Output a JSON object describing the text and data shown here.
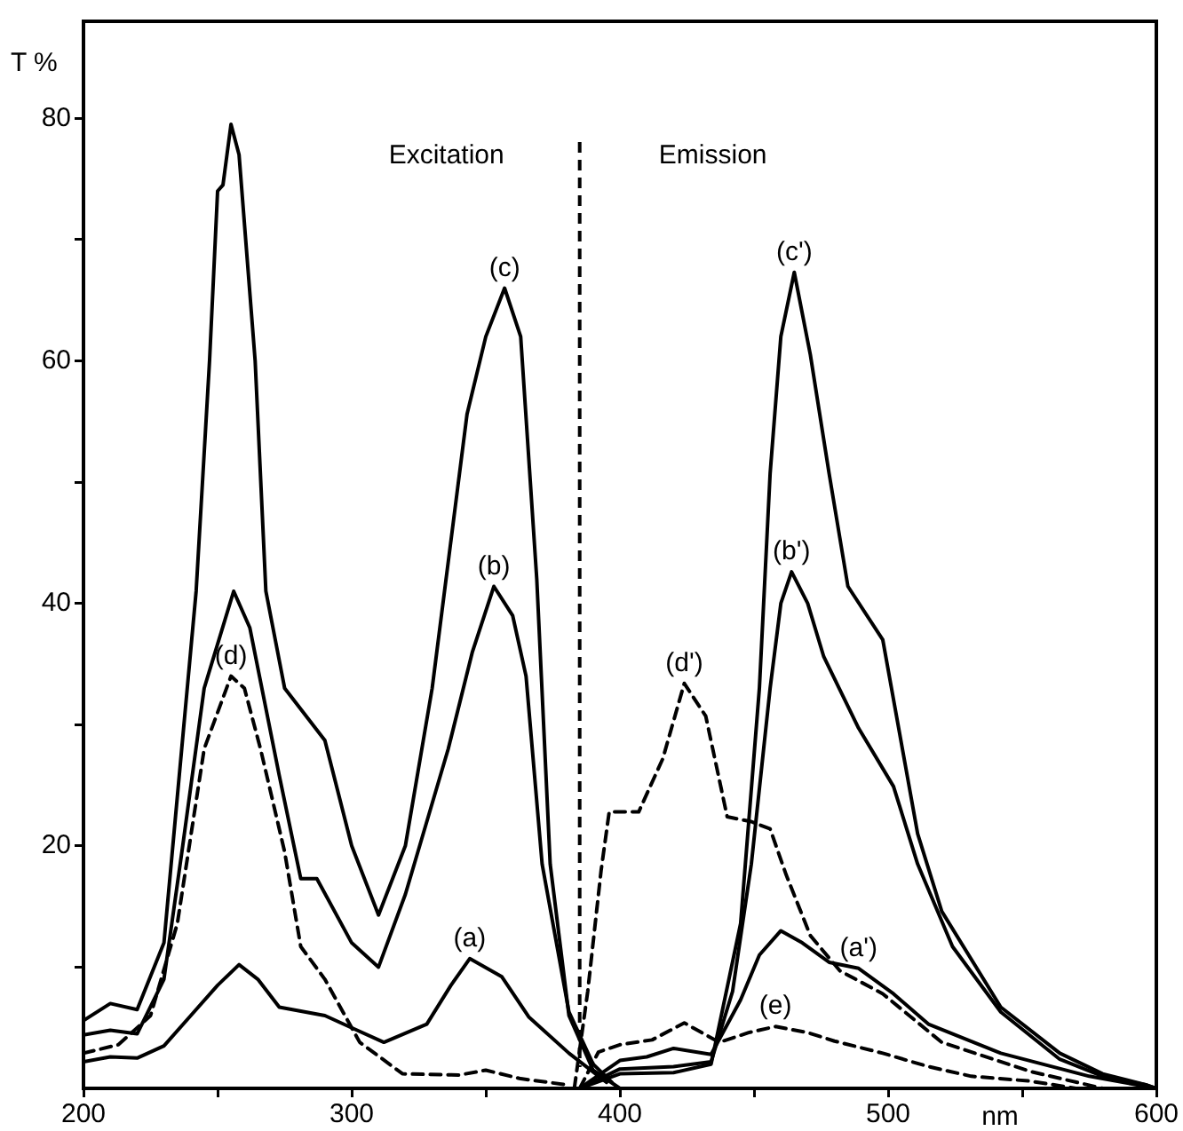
{
  "chart_data": {
    "type": "line",
    "xlabel": "nm",
    "ylabel": "T %",
    "xlim": [
      200,
      600
    ],
    "ylim": [
      0,
      88
    ],
    "xticks": [
      200,
      {
        "value": 250,
        "label": null
      },
      300,
      {
        "value": 350,
        "label": null
      },
      400,
      {
        "value": 450,
        "label": null
      },
      500,
      {
        "value": 550,
        "label": null
      },
      600
    ],
    "yticks": [
      {
        "value": 10,
        "label": null
      },
      20,
      {
        "value": 30,
        "label": null
      },
      40,
      {
        "value": 50,
        "label": null
      },
      60,
      {
        "value": 70,
        "label": null
      },
      80
    ],
    "grid": false,
    "legend": false,
    "marker": "none",
    "ref_lines": [
      {
        "axis": "x",
        "value": 385,
        "label": null,
        "color": "#000000",
        "line_style": "dashed"
      }
    ],
    "series": [
      {
        "color": "#000000",
        "line_style": "solid",
        "x": [
          200,
          210,
          220,
          230,
          242,
          247,
          250,
          252,
          255,
          258,
          264,
          268,
          275,
          290,
          300,
          310,
          320,
          330,
          343,
          350,
          357,
          363,
          369,
          374,
          381,
          390,
          400
        ],
        "values": [
          5.6,
          7,
          6.5,
          12,
          41,
          60,
          74,
          74.5,
          79.5,
          77,
          60,
          41,
          33,
          28.7,
          20,
          14.3,
          20,
          33,
          55.6,
          62,
          66,
          62,
          42,
          18.5,
          6,
          1.5,
          0
        ]
      },
      {
        "color": "#000000",
        "line_style": "solid",
        "x": [
          200,
          210,
          220,
          230,
          237,
          245,
          256,
          262,
          273,
          281,
          287,
          300,
          310,
          320,
          336,
          345,
          353,
          360,
          365,
          371,
          381,
          390,
          397
        ],
        "values": [
          4.4,
          4.8,
          4.5,
          9,
          20,
          33,
          41,
          38,
          25.8,
          17.3,
          17.3,
          12,
          10,
          16,
          28,
          36,
          41.4,
          39,
          34,
          18.5,
          6.3,
          2,
          0.5
        ]
      },
      {
        "color": "#000000",
        "line_style": "solid",
        "x": [
          200,
          210,
          220,
          230,
          240,
          250,
          258,
          265,
          273,
          290,
          300,
          312,
          328,
          337,
          344,
          356,
          366,
          381,
          395
        ],
        "values": [
          2.2,
          2.6,
          2.5,
          3.5,
          6,
          8.5,
          10.2,
          9,
          6.7,
          6,
          5,
          3.8,
          5.3,
          8.5,
          10.7,
          9.2,
          5.9,
          2.9,
          0.5
        ]
      },
      {
        "color": "#000000",
        "line_style": "dashed",
        "x": [
          200,
          213,
          225,
          235,
          245,
          255,
          260,
          266,
          275,
          281,
          290,
          303,
          319,
          340,
          350,
          363,
          380
        ],
        "values": [
          2.9,
          3.6,
          6,
          13.6,
          28,
          34,
          33,
          28,
          19.5,
          11.7,
          9,
          3.8,
          1.2,
          1.1,
          1.5,
          0.8,
          0.3
        ]
      },
      {
        "color": "#000000",
        "line_style": "solid",
        "x": [
          385,
          400,
          420,
          434,
          445,
          452,
          456,
          460,
          465,
          471,
          478,
          485,
          498,
          511,
          520,
          542,
          564,
          580,
          596,
          600
        ],
        "values": [
          0,
          1.2,
          1.3,
          2,
          13.6,
          33,
          50.7,
          62,
          67.3,
          60.5,
          50.7,
          41.4,
          37,
          21,
          14.6,
          6.7,
          2.9,
          1.2,
          0.3,
          0
        ]
      },
      {
        "color": "#000000",
        "line_style": "solid",
        "x": [
          385,
          400,
          420,
          434,
          442,
          449,
          456,
          460,
          464,
          470,
          476,
          489,
          502,
          511,
          524,
          542,
          564,
          580,
          596,
          600
        ],
        "values": [
          0,
          1.6,
          1.8,
          2.2,
          8,
          18.5,
          33,
          40,
          42.6,
          40,
          35.6,
          29.7,
          24.9,
          18.5,
          11.7,
          6.3,
          2.4,
          1,
          0.3,
          0
        ]
      },
      {
        "color": "#000000",
        "line_style": "solid",
        "x": [
          385,
          400,
          410,
          420,
          434,
          445,
          452,
          460,
          468,
          478,
          489,
          502,
          515,
          542,
          575,
          600
        ],
        "values": [
          0,
          2.3,
          2.6,
          3.3,
          2.8,
          7.3,
          11,
          13,
          12,
          10.4,
          9.9,
          7.8,
          5.3,
          2.9,
          1,
          0
        ]
      },
      {
        "color": "#000000",
        "line_style": "dashed",
        "x": [
          383,
          388,
          393,
          396,
          407,
          416,
          424,
          432,
          440,
          449,
          456,
          462,
          471,
          482,
          498,
          520,
          553,
          580
        ],
        "values": [
          0,
          8,
          18,
          22.8,
          22.8,
          27.2,
          33.4,
          30.7,
          22.4,
          22,
          21.4,
          17.6,
          12.6,
          9.7,
          7.8,
          3.8,
          1.4,
          0
        ]
      },
      {
        "color": "#000000",
        "line_style": "dashed",
        "x": [
          385,
          392,
          400,
          412,
          424,
          437,
          448,
          458,
          470,
          480,
          498,
          515,
          531,
          553,
          570
        ],
        "values": [
          0,
          3,
          3.6,
          4,
          5.4,
          3.8,
          4.6,
          5.1,
          4.6,
          3.9,
          2.9,
          1.8,
          1,
          0.6,
          0
        ]
      }
    ],
    "annotations": [
      "Excitation",
      "Emission",
      {
        "text": "(c)",
        "x": 357,
        "y": 66
      },
      {
        "text": "(b)",
        "x": 353,
        "y": 41.4
      },
      {
        "text": "(a)",
        "x": 344,
        "y": 10.7
      },
      {
        "text": "(d)",
        "x": 255,
        "y": 34
      },
      {
        "text": "(c')",
        "x": 465,
        "y": 67.3
      },
      {
        "text": "(b')",
        "x": 464,
        "y": 42.6
      },
      {
        "text": "(a')",
        "x": 489,
        "y": 9.9
      },
      {
        "text": "(d')",
        "x": 424,
        "y": 33.4
      },
      {
        "text": "(e)",
        "x": 458,
        "y": 5.1
      }
    ]
  }
}
